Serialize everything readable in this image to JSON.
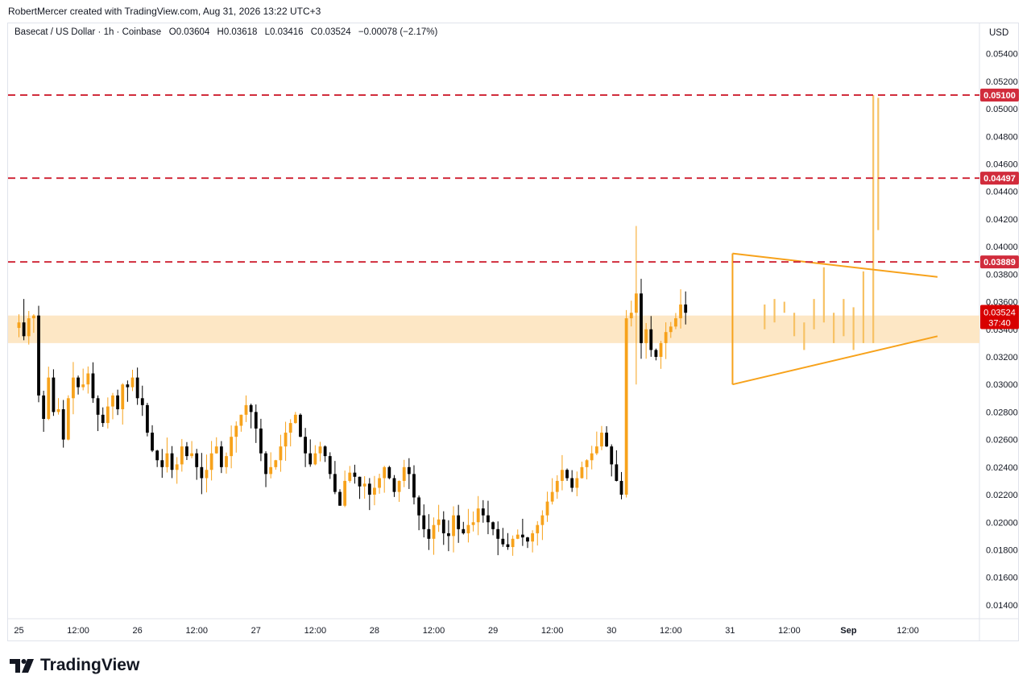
{
  "caption": "RobertMercer created with TradingView.com, Aug 31, 2026 13:22 UTC+3",
  "legend": {
    "symbol": "Basecat / US Dollar · 1h · Coinbase",
    "open_label": "O",
    "open": "0.03604",
    "high_label": "H",
    "high": "0.03618",
    "low_label": "L",
    "low": "0.03416",
    "close_label": "C",
    "close": "0.03524",
    "change": "−0.00078 (−2.17%)"
  },
  "currency": "USD",
  "brand": "TradingView",
  "colors": {
    "up": "#f7a21b",
    "down": "#000000",
    "projection": "#f7c265",
    "resistance": "#d12c3c",
    "zone": "#fde7c5",
    "triangle": "#f7a21b",
    "last_price_bg": "#d80000"
  },
  "chart_data": {
    "type": "candlestick",
    "interval": "1h",
    "ylim": [
      0.013,
      0.0562
    ],
    "y_ticks": [
      "0.05400",
      "0.05200",
      "0.05000",
      "0.04800",
      "0.04600",
      "0.04400",
      "0.04200",
      "0.04000",
      "0.03800",
      "0.03600",
      "0.03400",
      "0.03200",
      "0.03000",
      "0.02800",
      "0.02600",
      "0.02400",
      "0.02200",
      "0.02000",
      "0.01800",
      "0.01600",
      "0.01400"
    ],
    "x_labels": [
      {
        "h": 0,
        "label": "25"
      },
      {
        "h": 12,
        "label": "12:00"
      },
      {
        "h": 24,
        "label": "26"
      },
      {
        "h": 36,
        "label": "12:00"
      },
      {
        "h": 48,
        "label": "27"
      },
      {
        "h": 60,
        "label": "12:00"
      },
      {
        "h": 72,
        "label": "28"
      },
      {
        "h": 84,
        "label": "12:00"
      },
      {
        "h": 96,
        "label": "29"
      },
      {
        "h": 108,
        "label": "12:00"
      },
      {
        "h": 120,
        "label": "30"
      },
      {
        "h": 132,
        "label": "12:00"
      },
      {
        "h": 144,
        "label": "31"
      },
      {
        "h": 156,
        "label": "12:00"
      },
      {
        "h": 168,
        "label": "Sep"
      },
      {
        "h": 180,
        "label": "12:00"
      }
    ],
    "x_range_hours": [
      -2.2,
      194.5
    ],
    "candles_close_path": [
      0.0345,
      0.0335,
      0.0348,
      0.035,
      0.0292,
      0.0275,
      0.0305,
      0.028,
      0.0282,
      0.026,
      0.029,
      0.0305,
      0.0298,
      0.03,
      0.0308,
      0.029,
      0.0278,
      0.0272,
      0.0284,
      0.0292,
      0.0282,
      0.03,
      0.0298,
      0.0305,
      0.029,
      0.0285,
      0.0265,
      0.0252,
      0.0245,
      0.024,
      0.025,
      0.0238,
      0.0242,
      0.0255,
      0.0248,
      0.025,
      0.024,
      0.0232,
      0.0238,
      0.025,
      0.0255,
      0.024,
      0.0248,
      0.0262,
      0.027,
      0.0278,
      0.0285,
      0.028,
      0.0268,
      0.025,
      0.0235,
      0.024,
      0.0245,
      0.0255,
      0.0265,
      0.0272,
      0.0278,
      0.0262,
      0.025,
      0.0242,
      0.025,
      0.0255,
      0.0248,
      0.0235,
      0.0222,
      0.0212,
      0.023,
      0.0236,
      0.0233,
      0.0226,
      0.0228,
      0.022,
      0.0225,
      0.0232,
      0.024,
      0.0232,
      0.0222,
      0.023,
      0.024,
      0.0235,
      0.0218,
      0.0205,
      0.0195,
      0.0188,
      0.0198,
      0.0202,
      0.0192,
      0.019,
      0.0205,
      0.0195,
      0.0192,
      0.0198,
      0.02,
      0.021,
      0.0205,
      0.02,
      0.0195,
      0.0188,
      0.0184,
      0.0182,
      0.0188,
      0.0191,
      0.0189,
      0.0186,
      0.0192,
      0.0198,
      0.0205,
      0.0215,
      0.0222,
      0.023,
      0.0238,
      0.0232,
      0.0225,
      0.0232,
      0.024,
      0.0245,
      0.025,
      0.0255,
      0.0265,
      0.0255,
      0.0242,
      0.023,
      0.022,
      0.0348,
      0.0352,
      0.0366,
      0.033,
      0.034,
      0.0325,
      0.032,
      0.033,
      0.0338,
      0.0342,
      0.0348,
      0.0358,
      0.0352
    ],
    "candles_start_hour": 0,
    "projection_wicks": [
      {
        "h": 151,
        "lo": 0.034,
        "hi": 0.0358
      },
      {
        "h": 153,
        "lo": 0.0345,
        "hi": 0.0362
      },
      {
        "h": 155,
        "lo": 0.0352,
        "hi": 0.036
      },
      {
        "h": 157,
        "lo": 0.0335,
        "hi": 0.0352
      },
      {
        "h": 159,
        "lo": 0.0325,
        "hi": 0.0345
      },
      {
        "h": 161,
        "lo": 0.034,
        "hi": 0.0362
      },
      {
        "h": 163,
        "lo": 0.0345,
        "hi": 0.0385
      },
      {
        "h": 165,
        "lo": 0.033,
        "hi": 0.0352
      },
      {
        "h": 167,
        "lo": 0.0335,
        "hi": 0.0362
      },
      {
        "h": 169,
        "lo": 0.0325,
        "hi": 0.0356
      },
      {
        "h": 171,
        "lo": 0.033,
        "hi": 0.0382
      },
      {
        "h": 173,
        "lo": 0.033,
        "hi": 0.051
      },
      {
        "h": 174,
        "lo": 0.0412,
        "hi": 0.0508
      }
    ],
    "resistance_levels": [
      "0.05100",
      "0.04497",
      "0.03889"
    ],
    "zone": [
      0.033,
      0.035
    ],
    "triangle": {
      "upper": [
        [
          144.5,
          0.0395
        ],
        [
          186,
          0.0378
        ]
      ],
      "lower": [
        [
          144.5,
          0.03
        ],
        [
          186,
          0.0335
        ]
      ],
      "left": [
        [
          144.5,
          0.03
        ],
        [
          144.5,
          0.0395
        ]
      ]
    },
    "last_price": "0.03524",
    "countdown": "37:40"
  }
}
